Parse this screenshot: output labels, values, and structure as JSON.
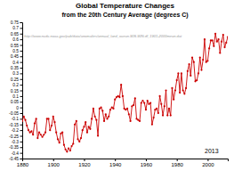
{
  "chart_data": {
    "type": "line",
    "title": "Global Temperature Changes",
    "subtitle": "from the 20th Century Average (degrees C)",
    "annotations": [
      "http://www.ncdc.noaa.gov/pub/data/anomalies/annual_land_ocean.90S.90N.df_1901-2000mean.dat",
      "2013"
    ],
    "color": "#cc0000",
    "marker": "circle",
    "grid": false,
    "xlim": [
      1880,
      2013
    ],
    "xticks": [
      1880,
      1900,
      1920,
      1940,
      1960,
      1980,
      2000
    ],
    "ylim": [
      -0.45,
      0.75
    ],
    "yticks": [
      -0.45,
      -0.4,
      -0.35,
      -0.3,
      -0.25,
      -0.2,
      -0.15,
      -0.1,
      -0.05,
      0,
      0.05,
      0.1,
      0.15,
      0.2,
      0.25,
      0.3,
      0.35,
      0.4,
      0.45,
      0.5,
      0.55,
      0.6,
      0.65,
      0.7,
      0.75
    ],
    "x": [
      1880,
      1881,
      1882,
      1883,
      1884,
      1885,
      1886,
      1887,
      1888,
      1889,
      1890,
      1891,
      1892,
      1893,
      1894,
      1895,
      1896,
      1897,
      1898,
      1899,
      1900,
      1901,
      1902,
      1903,
      1904,
      1905,
      1906,
      1907,
      1908,
      1909,
      1910,
      1911,
      1912,
      1913,
      1914,
      1915,
      1916,
      1917,
      1918,
      1919,
      1920,
      1921,
      1922,
      1923,
      1924,
      1925,
      1926,
      1927,
      1928,
      1929,
      1930,
      1931,
      1932,
      1933,
      1934,
      1935,
      1936,
      1937,
      1938,
      1939,
      1940,
      1941,
      1942,
      1943,
      1944,
      1945,
      1946,
      1947,
      1948,
      1949,
      1950,
      1951,
      1952,
      1953,
      1954,
      1955,
      1956,
      1957,
      1958,
      1959,
      1960,
      1961,
      1962,
      1963,
      1964,
      1965,
      1966,
      1967,
      1968,
      1969,
      1970,
      1971,
      1972,
      1973,
      1974,
      1975,
      1976,
      1977,
      1978,
      1979,
      1980,
      1981,
      1982,
      1983,
      1984,
      1985,
      1986,
      1987,
      1988,
      1989,
      1990,
      1991,
      1992,
      1993,
      1994,
      1995,
      1996,
      1997,
      1998,
      1999,
      2000,
      2001,
      2002,
      2003,
      2004,
      2005,
      2006,
      2007,
      2008,
      2009,
      2010,
      2011,
      2012,
      2013
    ],
    "values": [
      -0.12,
      -0.08,
      -0.11,
      -0.16,
      -0.2,
      -0.22,
      -0.21,
      -0.24,
      -0.14,
      -0.1,
      -0.27,
      -0.22,
      -0.24,
      -0.26,
      -0.24,
      -0.22,
      -0.1,
      -0.1,
      -0.2,
      -0.16,
      -0.08,
      -0.13,
      -0.22,
      -0.28,
      -0.31,
      -0.23,
      -0.22,
      -0.33,
      -0.37,
      -0.39,
      -0.36,
      -0.38,
      -0.34,
      -0.32,
      -0.15,
      -0.12,
      -0.28,
      -0.3,
      -0.27,
      -0.2,
      -0.17,
      -0.13,
      -0.22,
      -0.17,
      -0.19,
      -0.1,
      -0.01,
      -0.08,
      -0.11,
      -0.25,
      -0.01,
      0.0,
      -0.03,
      -0.12,
      -0.06,
      -0.1,
      -0.08,
      -0.02,
      0.0,
      -0.01,
      0.07,
      0.09,
      0.1,
      0.09,
      0.2,
      0.1,
      -0.01,
      -0.02,
      -0.01,
      -0.06,
      -0.12,
      0.01,
      0.02,
      0.08,
      -0.1,
      -0.11,
      -0.12,
      0.04,
      0.06,
      0.04,
      -0.02,
      0.06,
      0.03,
      0.04,
      -0.15,
      -0.09,
      -0.02,
      -0.01,
      -0.05,
      0.1,
      0.03,
      -0.07,
      0.01,
      0.15,
      -0.07,
      -0.01,
      -0.07,
      0.17,
      0.07,
      0.15,
      0.24,
      0.3,
      0.13,
      0.3,
      0.15,
      0.12,
      0.17,
      0.32,
      0.38,
      0.28,
      0.44,
      0.4,
      0.23,
      0.24,
      0.3,
      0.44,
      0.33,
      0.42,
      0.6,
      0.4,
      0.41,
      0.52,
      0.59,
      0.59,
      0.54,
      0.65,
      0.58,
      0.6,
      0.48,
      0.58,
      0.64,
      0.53,
      0.57,
      0.62
    ]
  }
}
